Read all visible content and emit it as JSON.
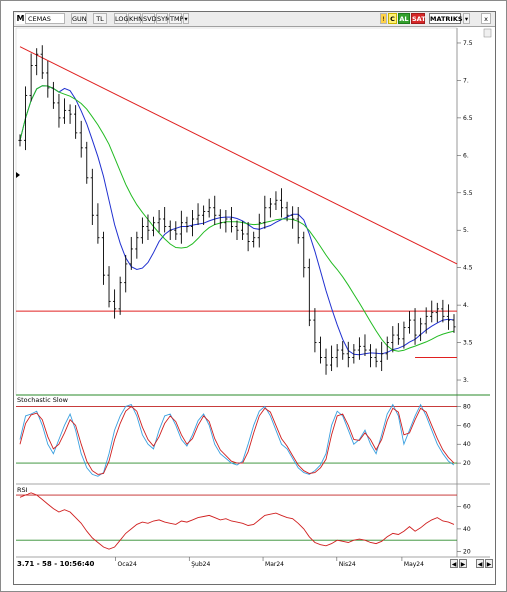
{
  "toolbar": {
    "logo": "M",
    "symbol": "CEMAS",
    "buttons": [
      "GUN",
      "TL",
      "LOG",
      "KHN",
      "SVD",
      "SYM",
      "TMP"
    ],
    "c_label": "C",
    "al_label": "AL",
    "sat_label": "SAT",
    "matriks_label": "MATRIKS",
    "close_label": "x"
  },
  "status_text": "3.71 - 58 - 10:56:40",
  "indicators": {
    "stochastic_label": "Stochastic Slow",
    "rsi_label": "RSI"
  },
  "chart_data": [
    {
      "type": "bar",
      "subtype": "ohlc",
      "x_labels": [
        "Oca24",
        "Şub24",
        "Mar24",
        "Nis24",
        "May24"
      ],
      "y_ticks": [
        "7.5",
        "7.",
        "6.5",
        "6.",
        "5.5",
        "5.",
        "4.5",
        "4.",
        "3.5",
        "3."
      ],
      "close": [
        6.2,
        6.8,
        7.2,
        7.35,
        7.1,
        6.9,
        6.7,
        6.5,
        6.6,
        6.55,
        6.3,
        6.1,
        5.7,
        5.2,
        4.9,
        4.4,
        4.05,
        3.95,
        4.3,
        4.55,
        4.75,
        4.9,
        5.05,
        5.0,
        5.1,
        5.15,
        5.05,
        5.0,
        4.95,
        5.1,
        5.05,
        5.15,
        5.2,
        5.25,
        5.3,
        5.2,
        5.1,
        5.15,
        5.05,
        5.0,
        4.95,
        4.85,
        4.9,
        5.1,
        5.3,
        5.35,
        5.4,
        5.3,
        5.2,
        5.15,
        4.9,
        4.5,
        3.8,
        3.5,
        3.3,
        3.2,
        3.3,
        3.4,
        3.35,
        3.3,
        3.4,
        3.45,
        3.4,
        3.3,
        3.25,
        3.35,
        3.5,
        3.6,
        3.55,
        3.7,
        3.8,
        3.6,
        3.75,
        3.85,
        3.9,
        3.95,
        3.85,
        3.8,
        3.71
      ],
      "overlays": [
        {
          "name": "",
          "color": "#2030d0",
          "type": "moving average"
        },
        {
          "name": "",
          "color": "#22bb22",
          "type": "moving average"
        },
        {
          "name": "",
          "color": "#e02020",
          "type": "trendline",
          "from": [
            0,
            7.45
          ],
          "to": [
            78,
            4.55
          ]
        },
        {
          "name": "",
          "color": "#e02020",
          "type": "support",
          "value": 3.92
        }
      ]
    },
    {
      "type": "line",
      "title": "Stochastic Slow",
      "y_ticks": [
        "80",
        "60",
        "40",
        "20"
      ],
      "levels": [
        80,
        20
      ],
      "series": [
        {
          "name": "",
          "color": "#3aa0e0",
          "values": [
            45,
            70,
            72,
            75,
            60,
            40,
            30,
            45,
            60,
            72,
            55,
            30,
            15,
            8,
            6,
            10,
            30,
            55,
            70,
            80,
            82,
            70,
            50,
            40,
            35,
            55,
            70,
            72,
            60,
            45,
            38,
            50,
            65,
            72,
            60,
            40,
            30,
            25,
            20,
            18,
            22,
            40,
            60,
            75,
            80,
            70,
            55,
            40,
            35,
            25,
            15,
            10,
            8,
            12,
            18,
            30,
            60,
            75,
            70,
            55,
            40,
            45,
            55,
            40,
            30,
            50,
            72,
            82,
            70,
            40,
            55,
            70,
            82,
            70,
            55,
            40,
            30,
            22,
            18
          ]
        },
        {
          "name": "",
          "color": "#d02020",
          "values": [
            40,
            62,
            71,
            73,
            66,
            48,
            35,
            40,
            52,
            66,
            60,
            40,
            22,
            12,
            8,
            9,
            22,
            45,
            62,
            75,
            80,
            75,
            58,
            45,
            38,
            48,
            62,
            70,
            64,
            50,
            40,
            46,
            60,
            70,
            64,
            46,
            34,
            28,
            22,
            20,
            20,
            32,
            52,
            70,
            78,
            74,
            60,
            46,
            38,
            28,
            18,
            12,
            9,
            10,
            15,
            24,
            50,
            70,
            72,
            60,
            45,
            44,
            52,
            45,
            34,
            45,
            65,
            78,
            74,
            50,
            52,
            66,
            78,
            74,
            60,
            46,
            34,
            26,
            20
          ]
        }
      ]
    },
    {
      "type": "line",
      "title": "RSI",
      "y_ticks": [
        "60",
        "40",
        "20"
      ],
      "levels": [
        70,
        30
      ],
      "series": [
        {
          "name": "",
          "color": "#d02020",
          "values": [
            68,
            70,
            72,
            70,
            66,
            62,
            58,
            55,
            57,
            55,
            50,
            45,
            38,
            32,
            28,
            24,
            22,
            24,
            30,
            36,
            40,
            44,
            46,
            45,
            47,
            48,
            46,
            45,
            44,
            47,
            46,
            48,
            50,
            51,
            52,
            50,
            48,
            49,
            47,
            46,
            45,
            43,
            44,
            48,
            52,
            53,
            54,
            52,
            50,
            49,
            45,
            40,
            33,
            28,
            26,
            25,
            27,
            30,
            29,
            28,
            30,
            31,
            30,
            28,
            27,
            29,
            33,
            36,
            35,
            38,
            42,
            38,
            41,
            45,
            48,
            50,
            47,
            46,
            44
          ]
        }
      ]
    }
  ]
}
